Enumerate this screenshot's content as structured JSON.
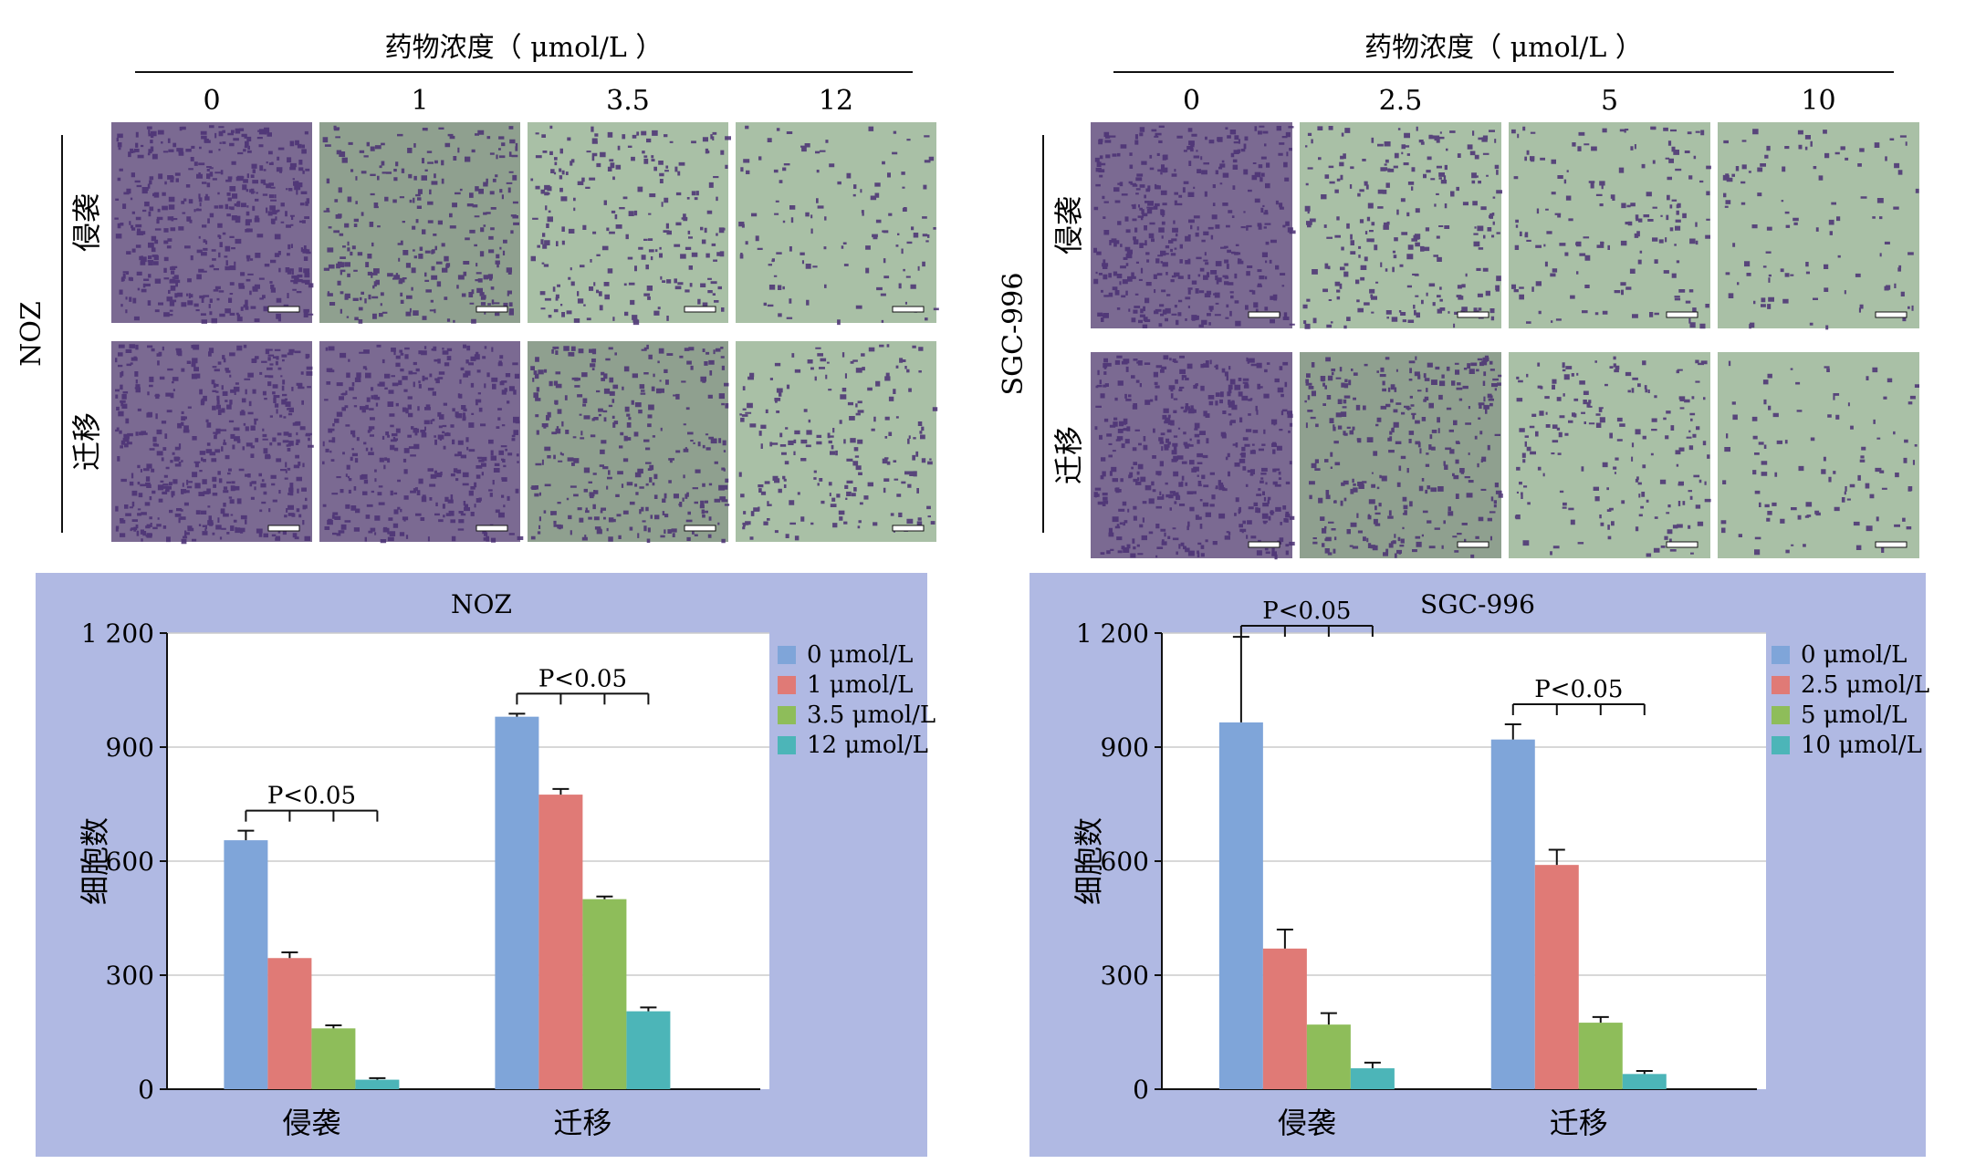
{
  "panels": [
    {
      "id": "noz",
      "header_label": "药物浓度（ μmol/L ）",
      "concentrations": [
        "0",
        "1",
        "3.5",
        "12"
      ],
      "cell_line_label": "NOZ",
      "row_labels": [
        "侵袭",
        "迁移"
      ],
      "micrograph_density": [
        [
          1.0,
          0.55,
          0.4,
          0.15
        ],
        [
          1.0,
          0.8,
          0.6,
          0.35
        ]
      ]
    },
    {
      "id": "sgc",
      "header_label": "药物浓度（ μmol/L ）",
      "concentrations": [
        "0",
        "2.5",
        "5",
        "10"
      ],
      "cell_line_label": "SGC-996",
      "row_labels": [
        "侵袭",
        "迁移"
      ],
      "micrograph_density": [
        [
          0.85,
          0.45,
          0.25,
          0.12
        ],
        [
          0.95,
          0.6,
          0.3,
          0.1
        ]
      ]
    }
  ],
  "colors": {
    "chart_background": "#b0b9e3",
    "plot_background": "#ffffff",
    "series": [
      "#7fa5d9",
      "#e07a76",
      "#8ebd5a",
      "#4cb5b8"
    ],
    "micrograph_bg": "#a9c0a6",
    "cell_stain": "#4a2f73"
  },
  "chart_data": [
    {
      "type": "bar",
      "title": "NOZ",
      "ylabel": "细胞数",
      "xlabel": "",
      "categories": [
        "侵袭",
        "迁移"
      ],
      "ylim": [
        0,
        1200
      ],
      "yticks": [
        0,
        300,
        600,
        900,
        1200
      ],
      "ytick_labels": [
        "0",
        "300",
        "600",
        "900",
        "1 200"
      ],
      "grid": true,
      "legend_position": "top-right",
      "series": [
        {
          "name": "0 μmol/L",
          "values": [
            655,
            980
          ],
          "errors": [
            25,
            8
          ]
        },
        {
          "name": "1 μmol/L",
          "values": [
            345,
            775
          ],
          "errors": [
            15,
            15
          ]
        },
        {
          "name": "3.5 μmol/L",
          "values": [
            160,
            500
          ],
          "errors": [
            8,
            7
          ]
        },
        {
          "name": "12 μmol/L",
          "values": [
            25,
            205
          ],
          "errors": [
            4,
            10
          ]
        }
      ],
      "annotations": [
        {
          "text": "P<0.05",
          "category": "侵袭"
        },
        {
          "text": "P<0.05",
          "category": "迁移"
        }
      ]
    },
    {
      "type": "bar",
      "title": "SGC-996",
      "ylabel": "细胞数",
      "xlabel": "",
      "categories": [
        "侵袭",
        "迁移"
      ],
      "ylim": [
        0,
        1200
      ],
      "yticks": [
        0,
        300,
        600,
        900,
        1200
      ],
      "ytick_labels": [
        "0",
        "300",
        "600",
        "900",
        "1 200"
      ],
      "grid": true,
      "legend_position": "top-right",
      "series": [
        {
          "name": "0 μmol/L",
          "values": [
            965,
            920
          ],
          "errors": [
            225,
            40
          ]
        },
        {
          "name": "2.5 μmol/L",
          "values": [
            370,
            590
          ],
          "errors": [
            50,
            40
          ]
        },
        {
          "name": "5 μmol/L",
          "values": [
            170,
            175
          ],
          "errors": [
            30,
            15
          ]
        },
        {
          "name": "10 μmol/L",
          "values": [
            55,
            40
          ],
          "errors": [
            15,
            8
          ]
        }
      ],
      "annotations": [
        {
          "text": "P<0.05",
          "category": "侵袭"
        },
        {
          "text": "P<0.05",
          "category": "迁移"
        }
      ]
    }
  ]
}
